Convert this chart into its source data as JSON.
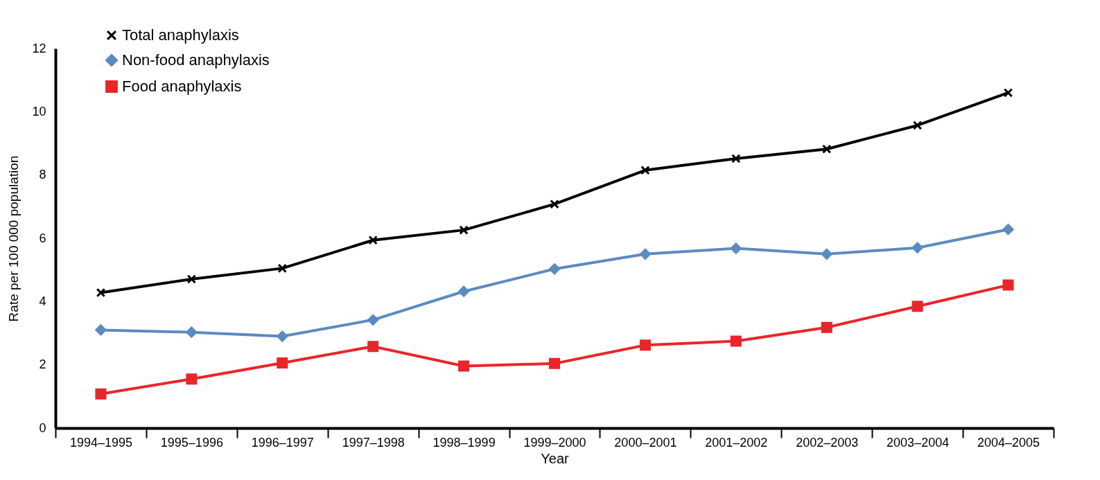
{
  "chart_data": {
    "type": "line",
    "xlabel": "Year",
    "ylabel": "Rate per 100 000 population",
    "categories": [
      "1994–1995",
      "1995–1996",
      "1996–1997",
      "1997–1998",
      "1998–1999",
      "1999–2000",
      "2000–2001",
      "2001–2002",
      "2002–2003",
      "2003–2004",
      "2004–2005"
    ],
    "series": [
      {
        "name": "Total anaphylaxis",
        "color": "#000000",
        "marker": "cross",
        "values": [
          4.28,
          4.71,
          5.05,
          5.94,
          6.26,
          7.08,
          8.15,
          8.52,
          8.82,
          9.57,
          10.6
        ]
      },
      {
        "name": "Non-food anaphylaxis",
        "color": "#5b8bc0",
        "marker": "diamond",
        "values": [
          3.1,
          3.03,
          2.9,
          3.42,
          4.32,
          5.03,
          5.5,
          5.68,
          5.5,
          5.7,
          6.28
        ]
      },
      {
        "name": "Food anaphylaxis",
        "color": "#e8262a",
        "marker": "square",
        "values": [
          1.08,
          1.55,
          2.06,
          2.58,
          1.96,
          2.04,
          2.62,
          2.75,
          3.18,
          3.85,
          4.52
        ]
      }
    ],
    "ylim": [
      0,
      12
    ],
    "yticks": [
      0,
      2,
      4,
      6,
      8,
      10,
      12
    ],
    "grid": false,
    "legend": "top left",
    "line_style": "solid"
  }
}
